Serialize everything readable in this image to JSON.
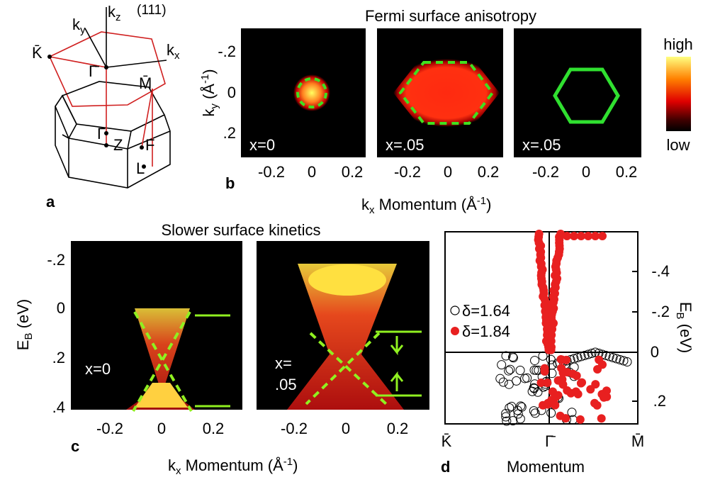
{
  "panel_a": {
    "label": "a",
    "kz": {
      "base": "k",
      "sub": "z"
    },
    "plane": "(111)",
    "ky": {
      "base": "k",
      "sub": "y"
    },
    "kx": {
      "base": "k",
      "sub": "x"
    },
    "points": [
      "K̄",
      "Γ̄",
      "M̄",
      "Γ",
      "Z",
      "F",
      "L"
    ]
  },
  "panel_b": {
    "label": "b",
    "title": "Fermi surface anisotropy",
    "ylabel": {
      "base": "k",
      "sub": "y",
      "rest": " (Å",
      "sup": "-1",
      "end": ")"
    },
    "yticks": [
      "-.2",
      "0",
      ".2"
    ],
    "xlabel": {
      "base": "k",
      "sub": "x",
      "rest": " Momentum (Å",
      "sup": "-1",
      "end": ")"
    },
    "maps": [
      {
        "label": "x=0",
        "xticks": [
          "-0.2",
          "0",
          "0.2"
        ]
      },
      {
        "label": "x=.05",
        "xticks": [
          "-0.2",
          "0",
          "0.2"
        ]
      },
      {
        "label": "x=.05",
        "xticks": [
          "-0.2",
          "0",
          "0.2"
        ]
      }
    ],
    "colorbar": {
      "high": "high",
      "low": "low"
    }
  },
  "panel_c": {
    "label": "c",
    "title": "Slower surface kinetics",
    "ylabel": {
      "base": "E",
      "sub": "B",
      "rest": " (eV)"
    },
    "yticks": [
      "-.2",
      "0",
      ".2",
      ".4"
    ],
    "xlabel": {
      "base": "k",
      "sub": "x",
      "rest": " Momentum (Å",
      "sup": "-1",
      "end": ")"
    },
    "maps": [
      {
        "label": [
          "x=0"
        ],
        "xticks": [
          "-0.2",
          "0",
          "0.2"
        ]
      },
      {
        "label": [
          "x=",
          ".05"
        ],
        "xticks": [
          "-0.2",
          "0",
          "0.2"
        ]
      }
    ]
  },
  "panel_d": {
    "label": "d",
    "legend": [
      "δ=1.64",
      "δ=1.84"
    ],
    "yticks": [
      "-.4",
      "-.2",
      "0",
      ".2"
    ],
    "ylabel": {
      "base": "E",
      "sub": "B",
      "rest": " (eV)"
    },
    "xticks": [
      "K̄",
      "Γ̄",
      "M̄"
    ],
    "xlabel": "Momentum"
  }
}
